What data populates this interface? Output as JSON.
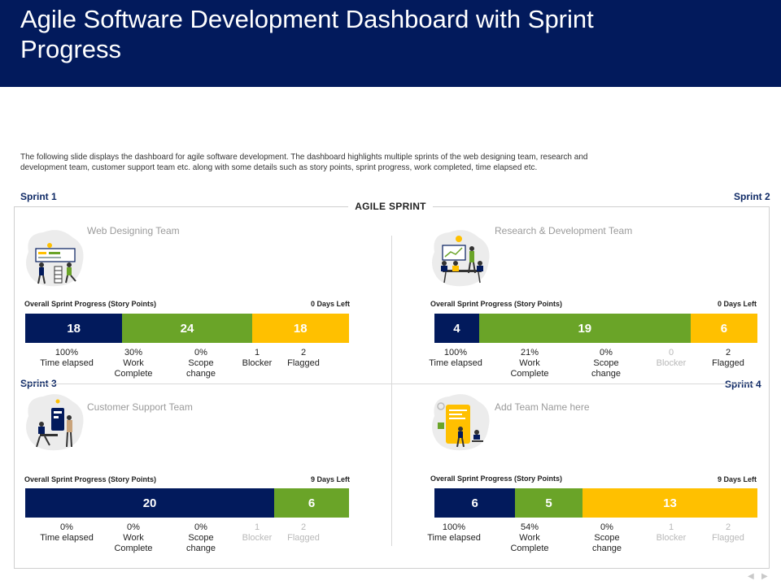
{
  "title": "Agile Software Development Dashboard with Sprint Progress",
  "description": "The following slide displays the dashboard for agile software development. The dashboard highlights multiple  sprints of the web designing team, research and development team,  customer support team etc. along  with some details such as story points, sprint progress, work completed, time elapsed etc.",
  "agile_label": "AGILE SPRINT",
  "progress_label": "Overall Sprint Progress (Story Points)",
  "sprints": [
    {
      "tag": "Sprint 1",
      "team": "Web Designing Team",
      "days_left": "0 Days Left",
      "segments": [
        {
          "value": "18",
          "color": "#021a5c"
        },
        {
          "value": "24",
          "color": "#6aa428"
        },
        {
          "value": "18",
          "color": "#ffc000"
        }
      ],
      "stats": [
        {
          "value": "100%",
          "label": "Time elapsed"
        },
        {
          "value": "30%",
          "label": "Work Complete"
        },
        {
          "value": "0%",
          "label": "Scope change"
        },
        {
          "value": "1",
          "label": "Blocker"
        },
        {
          "value": "2",
          "label": "Flagged"
        }
      ]
    },
    {
      "tag": "Sprint 2",
      "team": "Research & Development Team",
      "days_left": "0 Days Left",
      "segments": [
        {
          "value": "4",
          "color": "#021a5c"
        },
        {
          "value": "19",
          "color": "#6aa428"
        },
        {
          "value": "6",
          "color": "#ffc000"
        }
      ],
      "stats": [
        {
          "value": "100%",
          "label": "Time elapsed"
        },
        {
          "value": "21%",
          "label": "Work Complete"
        },
        {
          "value": "0%",
          "label": "Scope change"
        },
        {
          "value": "0",
          "label": "Blocker"
        },
        {
          "value": "2",
          "label": "Flagged"
        }
      ]
    },
    {
      "tag": "Sprint 3",
      "team": "Customer Support Team",
      "days_left": "9 Days Left",
      "segments": [
        {
          "value": "20",
          "color": "#021a5c"
        },
        {
          "value": "6",
          "color": "#6aa428"
        }
      ],
      "stats": [
        {
          "value": "0%",
          "label": "Time elapsed"
        },
        {
          "value": "0%",
          "label": "Work Complete"
        },
        {
          "value": "0%",
          "label": "Scope change"
        },
        {
          "value": "1",
          "label": "Blocker"
        },
        {
          "value": "2",
          "label": "Flagged"
        }
      ]
    },
    {
      "tag": "Sprint 4",
      "team": "Add Team Name here",
      "days_left": "9 Days Left",
      "segments": [
        {
          "value": "6",
          "color": "#021a5c"
        },
        {
          "value": "5",
          "color": "#6aa428"
        },
        {
          "value": "13",
          "color": "#ffc000"
        }
      ],
      "stats": [
        {
          "value": "100%",
          "label": "Time elapsed"
        },
        {
          "value": "54%",
          "label": "Work Complete"
        },
        {
          "value": "0%",
          "label": "Scope change"
        },
        {
          "value": "1",
          "label": "Blocker"
        },
        {
          "value": "2",
          "label": "Flagged"
        }
      ]
    }
  ]
}
